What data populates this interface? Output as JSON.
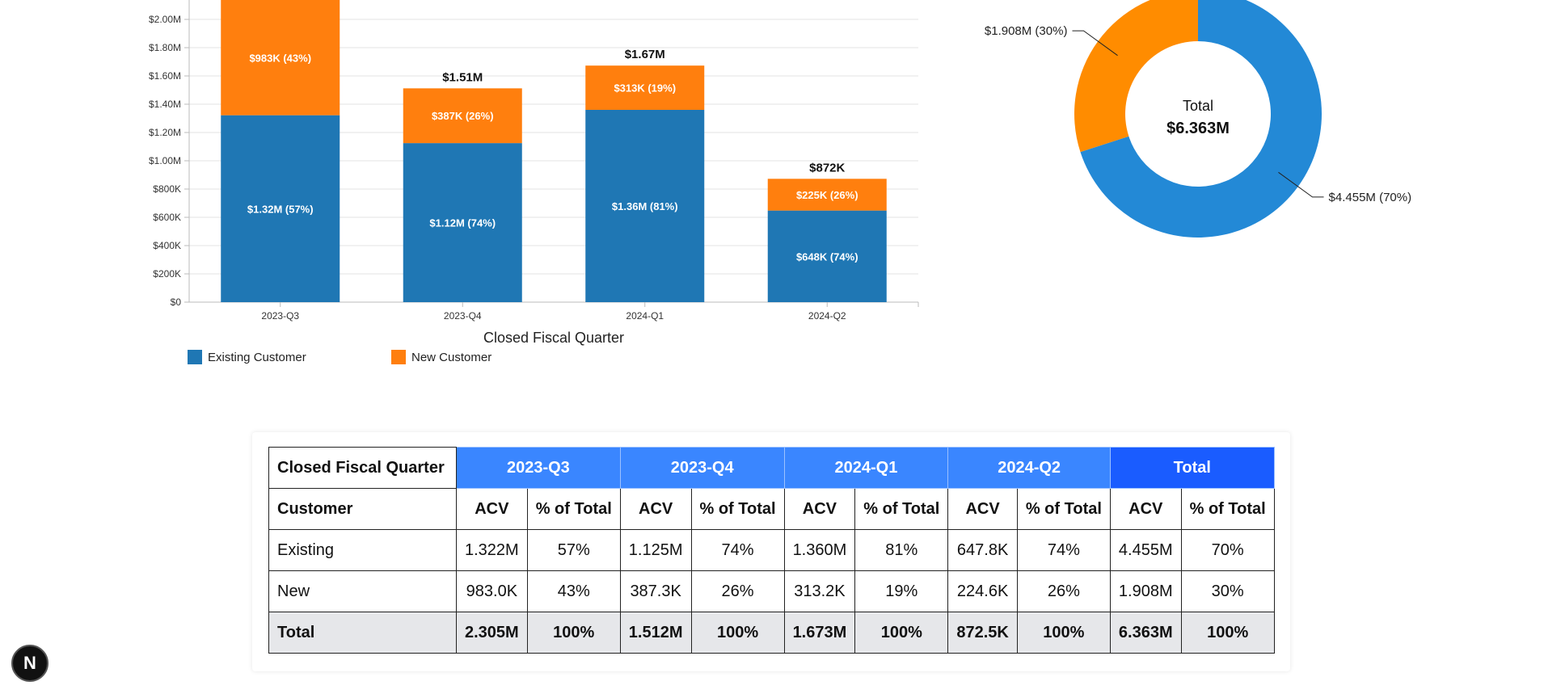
{
  "chart_data": [
    {
      "type": "bar",
      "stacked": true,
      "categories": [
        "2023-Q3",
        "2023-Q4",
        "2024-Q1",
        "2024-Q2"
      ],
      "series": [
        {
          "name": "Existing Customer",
          "values": [
            1322000,
            1125000,
            1360000,
            647800
          ],
          "labels": [
            "$1.32M (57%)",
            "$1.12M (74%)",
            "$1.36M (81%)",
            "$648K (74%)"
          ],
          "color": "#1f77b4"
        },
        {
          "name": "New Customer",
          "values": [
            983000,
            387300,
            313200,
            224600
          ],
          "labels": [
            "$983K (43%)",
            "$387K (26%)",
            "$313K (19%)",
            "$225K (26%)"
          ],
          "color": "#ff7f0e"
        }
      ],
      "totals": [
        "",
        "$1.51M",
        "$1.67M",
        "$872K"
      ],
      "xlabel": "Closed Fiscal Quarter",
      "ylabel": "",
      "ylim": [
        0,
        2200000
      ],
      "yticks": [
        0,
        200000,
        400000,
        600000,
        800000,
        1000000,
        1200000,
        1400000,
        1600000,
        1800000,
        2000000
      ],
      "ytick_labels": [
        "$0",
        "$200K",
        "$400K",
        "$600K",
        "$800K",
        "$1.00M",
        "$1.20M",
        "$1.40M",
        "$1.60M",
        "$1.80M",
        "$2.00M"
      ],
      "grid": true,
      "legend_placement": "bottom-left"
    },
    {
      "type": "pie",
      "donut": true,
      "slices": [
        {
          "name": "Existing Customer",
          "value": 4455000,
          "label": "$4.455M (70%)",
          "color": "#2389d6"
        },
        {
          "name": "New Customer",
          "value": 1908000,
          "label": "$1.908M (30%)",
          "color": "#ff8c00"
        }
      ],
      "center_title": "Total",
      "center_value": "$6.363M"
    }
  ],
  "table": {
    "corner_header": "Closed Fiscal Quarter",
    "row_header": "Customer",
    "quarters": [
      "2023-Q3",
      "2023-Q4",
      "2024-Q1",
      "2024-Q2"
    ],
    "total_header": "Total",
    "acv_label": "ACV",
    "pct_label": "% of Total",
    "rows": [
      {
        "name": "Existing",
        "cells": [
          "1.322M",
          "57%",
          "1.125M",
          "74%",
          "1.360M",
          "81%",
          "647.8K",
          "74%",
          "4.455M",
          "70%"
        ]
      },
      {
        "name": "New",
        "cells": [
          "983.0K",
          "43%",
          "387.3K",
          "26%",
          "313.2K",
          "19%",
          "224.6K",
          "26%",
          "1.908M",
          "30%"
        ]
      },
      {
        "name": "Total",
        "cells": [
          "2.305M",
          "100%",
          "1.512M",
          "100%",
          "1.673M",
          "100%",
          "872.5K",
          "100%",
          "6.363M",
          "100%"
        ]
      }
    ]
  },
  "nav_badge": {
    "letter": "N",
    "icon": "nextjs-icon"
  }
}
